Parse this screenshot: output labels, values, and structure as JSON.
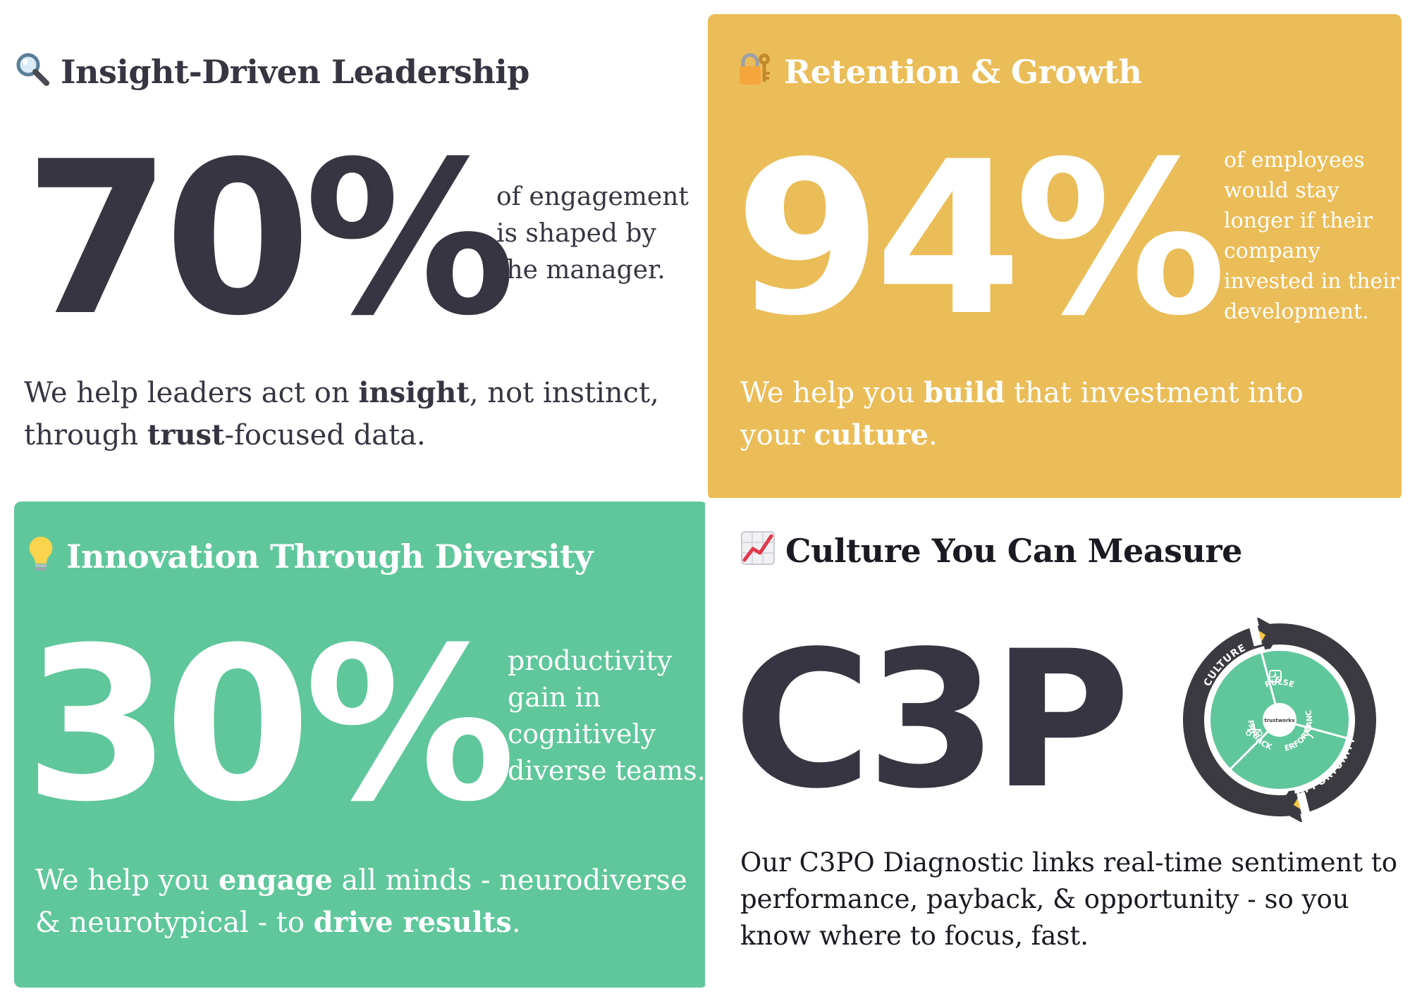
{
  "colors": {
    "dark_text": "#373542",
    "accent_yellow": "#ebbd58",
    "accent_green": "#5fc79b",
    "white": "#ffffff",
    "cycle_dark": "#3a3a40"
  },
  "insight": {
    "icon": "magnifying-glass-icon",
    "title": "Insight-Driven Leadership",
    "stat": "70%",
    "stat_caption": [
      "of engagement",
      "is shaped by",
      "the manager."
    ],
    "body": {
      "p1": "We help leaders act on ",
      "b1": "insight",
      "p2": ", not instinct,",
      "p3": "through ",
      "b2": "trust",
      "p4": "-focused data."
    }
  },
  "retention": {
    "icon": "lock-key-icon",
    "title": "Retention & Growth",
    "stat": "94%",
    "stat_caption": [
      "of employees",
      "would stay",
      "longer if their",
      "company",
      "invested in their",
      "development."
    ],
    "body": {
      "p1": "We help you ",
      "b1": "build",
      "p2": " that investment into",
      "p3": "your ",
      "b2": "culture",
      "p4": "."
    }
  },
  "innovation": {
    "icon": "light-bulb-icon",
    "title": "Innovation Through Diversity",
    "stat": "30%",
    "stat_caption": [
      "productivity",
      "gain in",
      "cognitively",
      "diverse teams."
    ],
    "body": {
      "p1": "We help you ",
      "b1": "engage",
      "p2": " all minds - neurodiverse",
      "p3": "& neurotypical - to ",
      "b2": "drive results",
      "p4": "."
    }
  },
  "culture": {
    "icon": "chart-increasing-icon",
    "title": "Culture You Can Measure",
    "logo_text": "C3P",
    "cycle": {
      "outer_labels": [
        "CULTURE",
        "OPPORTUNITY"
      ],
      "inner_labels": [
        "PULSE",
        "PERFORMANCE",
        "PAYBACK"
      ],
      "center_brand": "trustworkx"
    },
    "body": [
      "Our C3PO Diagnostic links real-time sentiment to",
      "performance, payback, & opportunity - so you",
      "know where to focus, fast."
    ]
  }
}
